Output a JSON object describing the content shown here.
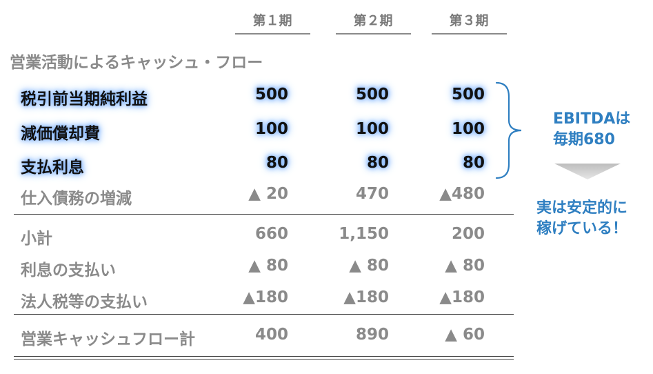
{
  "header": {
    "periods": [
      "第１期",
      "第２期",
      "第３期"
    ]
  },
  "section_title": "営業活動によるキャッシュ・フロー",
  "highlighted_rows": [
    {
      "label": "税引前当期純利益",
      "values": [
        "500",
        "500",
        "500"
      ]
    },
    {
      "label": "減価償却費",
      "values": [
        "100",
        "100",
        "100"
      ]
    },
    {
      "label": "支払利息",
      "values": [
        "80",
        "80",
        "80"
      ]
    }
  ],
  "row_payables": {
    "label": "仕入債務の増減",
    "values": [
      "▲ 20",
      "470",
      "▲480"
    ]
  },
  "subtotal_rows": [
    {
      "label": "小計",
      "values": [
        "660",
        "1,150",
        "200"
      ]
    },
    {
      "label": "利息の支払い",
      "values": [
        "▲ 80",
        "▲ 80",
        "▲ 80"
      ]
    },
    {
      "label": "法人税等の支払い",
      "values": [
        "▲180",
        "▲180",
        "▲180"
      ]
    }
  ],
  "total_row": {
    "label": "営業キャッシュフロー計",
    "values": [
      "400",
      "890",
      "▲ 60"
    ]
  },
  "annotations": {
    "ebitda_line1": "EBITDAは",
    "ebitda_line2": "毎期680",
    "conclusion_line1": "実は安定的に",
    "conclusion_line2": "稼げている！"
  },
  "colors": {
    "accent": "#2f7fc1",
    "glow": "#7fb4ff",
    "muted_text": "#8a8a8a",
    "arrow": "#c8c8c8"
  }
}
